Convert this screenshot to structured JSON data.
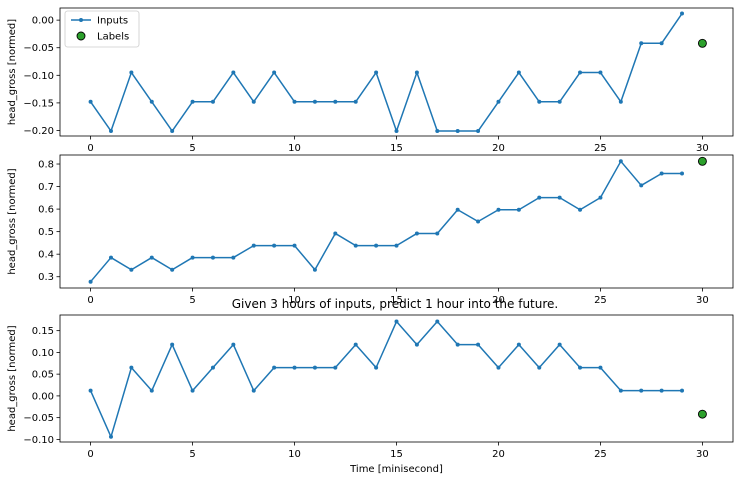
{
  "figure": {
    "caption": "Given 3 hours of inputs, predict 1 hour into the future."
  },
  "colors": {
    "inputs_line": "#1f77b4",
    "label_marker_fill": "#2ca02c",
    "label_marker_edge": "#000000",
    "axis": "#000000",
    "background": "#ffffff"
  },
  "legend": {
    "inputs": "Inputs",
    "labels": "Labels",
    "placement": "upper-left"
  },
  "chart_data": [
    {
      "type": "line",
      "ylabel": "head_gross [normed]",
      "xlabel": "",
      "xlim": [
        -1.5,
        31.5
      ],
      "ylim": [
        -0.21,
        0.022
      ],
      "xticks": [
        0,
        5,
        10,
        15,
        20,
        25,
        30
      ],
      "yticks": [
        0.0,
        -0.05,
        -0.1,
        -0.15,
        -0.2
      ],
      "ytick_labels": [
        "0.00",
        "−0.05",
        "−0.10",
        "−0.15",
        "−0.20"
      ],
      "grid": false,
      "show_legend": true,
      "series": [
        {
          "name": "Inputs",
          "x": [
            0,
            1,
            2,
            3,
            4,
            5,
            6,
            7,
            8,
            9,
            10,
            11,
            12,
            13,
            14,
            15,
            16,
            17,
            18,
            19,
            20,
            21,
            22,
            23,
            24,
            25,
            26,
            27,
            28,
            29
          ],
          "values": [
            -0.148,
            -0.201,
            -0.095,
            -0.148,
            -0.201,
            -0.148,
            -0.148,
            -0.095,
            -0.148,
            -0.095,
            -0.148,
            -0.148,
            -0.148,
            -0.148,
            -0.095,
            -0.201,
            -0.095,
            -0.201,
            -0.201,
            -0.201,
            -0.148,
            -0.095,
            -0.148,
            -0.148,
            -0.095,
            -0.095,
            -0.148,
            -0.042,
            -0.042,
            0.012
          ]
        },
        {
          "name": "Labels",
          "x": [
            30
          ],
          "values": [
            -0.042
          ]
        }
      ]
    },
    {
      "type": "line",
      "ylabel": "head_gross [normed]",
      "xlabel": "",
      "xlim": [
        -1.5,
        31.5
      ],
      "ylim": [
        0.25,
        0.84
      ],
      "xticks": [
        0,
        5,
        10,
        15,
        20,
        25,
        30
      ],
      "yticks": [
        0.3,
        0.4,
        0.5,
        0.6,
        0.7,
        0.8
      ],
      "ytick_labels": [
        "0.3",
        "0.4",
        "0.5",
        "0.6",
        "0.7",
        "0.8"
      ],
      "grid": false,
      "show_legend": false,
      "series": [
        {
          "name": "Inputs",
          "x": [
            0,
            1,
            2,
            3,
            4,
            5,
            6,
            7,
            8,
            9,
            10,
            11,
            12,
            13,
            14,
            15,
            16,
            17,
            18,
            19,
            20,
            21,
            22,
            23,
            24,
            25,
            26,
            27,
            28,
            29
          ],
          "values": [
            0.278,
            0.385,
            0.331,
            0.385,
            0.331,
            0.385,
            0.385,
            0.385,
            0.438,
            0.438,
            0.438,
            0.331,
            0.492,
            0.438,
            0.438,
            0.438,
            0.492,
            0.492,
            0.597,
            0.545,
            0.597,
            0.597,
            0.651,
            0.651,
            0.597,
            0.651,
            0.812,
            0.705,
            0.758,
            0.758
          ]
        },
        {
          "name": "Labels",
          "x": [
            30
          ],
          "values": [
            0.812
          ]
        }
      ]
    },
    {
      "type": "line",
      "ylabel": "head_gross [normed]",
      "xlabel": "Time [minisecond]",
      "xlim": [
        -1.5,
        31.5
      ],
      "ylim": [
        -0.106,
        0.186
      ],
      "xticks": [
        0,
        5,
        10,
        15,
        20,
        25,
        30
      ],
      "yticks": [
        0.15,
        0.1,
        0.05,
        0.0,
        -0.05,
        -0.1
      ],
      "ytick_labels": [
        "0.15",
        "0.10",
        "0.05",
        "0.00",
        "−0.05",
        "−0.10"
      ],
      "grid": false,
      "show_legend": false,
      "series": [
        {
          "name": "Inputs",
          "x": [
            0,
            1,
            2,
            3,
            4,
            5,
            6,
            7,
            8,
            9,
            10,
            11,
            12,
            13,
            14,
            15,
            16,
            17,
            18,
            19,
            20,
            21,
            22,
            23,
            24,
            25,
            26,
            27,
            28,
            29
          ],
          "values": [
            0.012,
            -0.094,
            0.065,
            0.012,
            0.118,
            0.012,
            0.065,
            0.118,
            0.012,
            0.065,
            0.065,
            0.065,
            0.065,
            0.118,
            0.065,
            0.171,
            0.118,
            0.171,
            0.118,
            0.118,
            0.065,
            0.118,
            0.065,
            0.118,
            0.065,
            0.065,
            0.012,
            0.012,
            0.012,
            0.012
          ]
        },
        {
          "name": "Labels",
          "x": [
            30
          ],
          "values": [
            -0.042
          ]
        }
      ]
    }
  ]
}
